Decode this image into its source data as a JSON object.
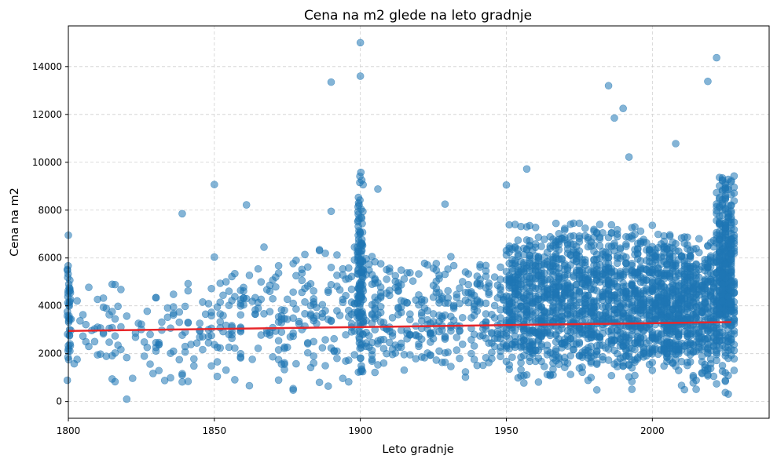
{
  "chart_data": {
    "type": "scatter",
    "title": "Cena na m2 glede na leto gradnje",
    "xlabel": "Leto gradnje",
    "ylabel": "Cena na m2",
    "xlim": [
      1800,
      2040
    ],
    "ylim": [
      -700,
      15700
    ],
    "xticks": [
      1800,
      1850,
      1900,
      1950,
      2000
    ],
    "yticks": [
      0,
      2000,
      4000,
      6000,
      8000,
      10000,
      12000,
      14000
    ],
    "grid": true,
    "legend": "none",
    "point_color": "#1f77b4",
    "trend_color": "#e8262a",
    "trend_line": {
      "x": [
        1800,
        2027
      ],
      "y": [
        2950,
        3320
      ]
    },
    "highlight_points": [
      {
        "x": 1900,
        "y": 15000
      },
      {
        "x": 1900,
        "y": 13600
      },
      {
        "x": 1890,
        "y": 13350
      },
      {
        "x": 2022,
        "y": 14370
      },
      {
        "x": 2019,
        "y": 13380
      },
      {
        "x": 1985,
        "y": 13200
      },
      {
        "x": 1990,
        "y": 12250
      },
      {
        "x": 1987,
        "y": 11850
      },
      {
        "x": 2008,
        "y": 10780
      },
      {
        "x": 1992,
        "y": 10220
      },
      {
        "x": 1850,
        "y": 9070
      },
      {
        "x": 1861,
        "y": 8220
      },
      {
        "x": 1839,
        "y": 7850
      },
      {
        "x": 1890,
        "y": 7950
      },
      {
        "x": 1906,
        "y": 8880
      },
      {
        "x": 1800,
        "y": 6950
      },
      {
        "x": 1815,
        "y": 4900
      },
      {
        "x": 1820,
        "y": 100
      },
      {
        "x": 1929,
        "y": 8250
      },
      {
        "x": 1950,
        "y": 9050
      },
      {
        "x": 1957,
        "y": 9720
      }
    ],
    "clusters": [
      {
        "x": [
          1799.5,
          1801
        ],
        "y": [
          200,
          6200
        ],
        "n": 45
      },
      {
        "x": [
          1802,
          1850
        ],
        "y": [
          100,
          5000
        ],
        "n": 120
      },
      {
        "x": [
          1850,
          1900
        ],
        "y": [
          100,
          6500
        ],
        "n": 220
      },
      {
        "x": [
          1899,
          1901
        ],
        "y": [
          0,
          9600
        ],
        "n": 140
      },
      {
        "x": [
          1901,
          1950
        ],
        "y": [
          100,
          6200
        ],
        "n": 330
      },
      {
        "x": [
          1950,
          2000
        ],
        "y": [
          100,
          7500
        ],
        "n": 1300
      },
      {
        "x": [
          2000,
          2022
        ],
        "y": [
          100,
          7000
        ],
        "n": 700
      },
      {
        "x": [
          2022,
          2028
        ],
        "y": [
          100,
          9500
        ],
        "n": 420
      }
    ]
  }
}
